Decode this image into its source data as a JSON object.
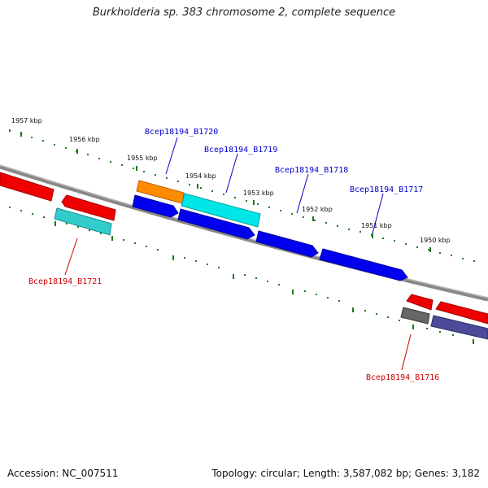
{
  "title": "Burkholderia sp. 383 chromosome 2, complete sequence",
  "footer": {
    "accession": "Accession: NC_007511",
    "summary": "Topology: circular; Length: 3,587,082 bp; Genes: 3,182"
  },
  "kbp_labels": [
    "1957 kbp",
    "1956 kbp",
    "1955 kbp",
    "1954 kbp",
    "1953 kbp",
    "1952 kbp",
    "1951 kbp",
    "1950 kbp"
  ],
  "gene_labels": {
    "B1720": "Bcep18194_B1720",
    "B1719": "Bcep18194_B1719",
    "B1718": "Bcep18194_B1718",
    "B1717": "Bcep18194_B1717",
    "B1721": "Bcep18194_B1721",
    "B1716": "Bcep18194_B1716"
  },
  "colors": {
    "blue_label": "#0000cc",
    "red_label": "#cc0000",
    "backbone": "#777777",
    "tick": "#1a7a1a"
  }
}
